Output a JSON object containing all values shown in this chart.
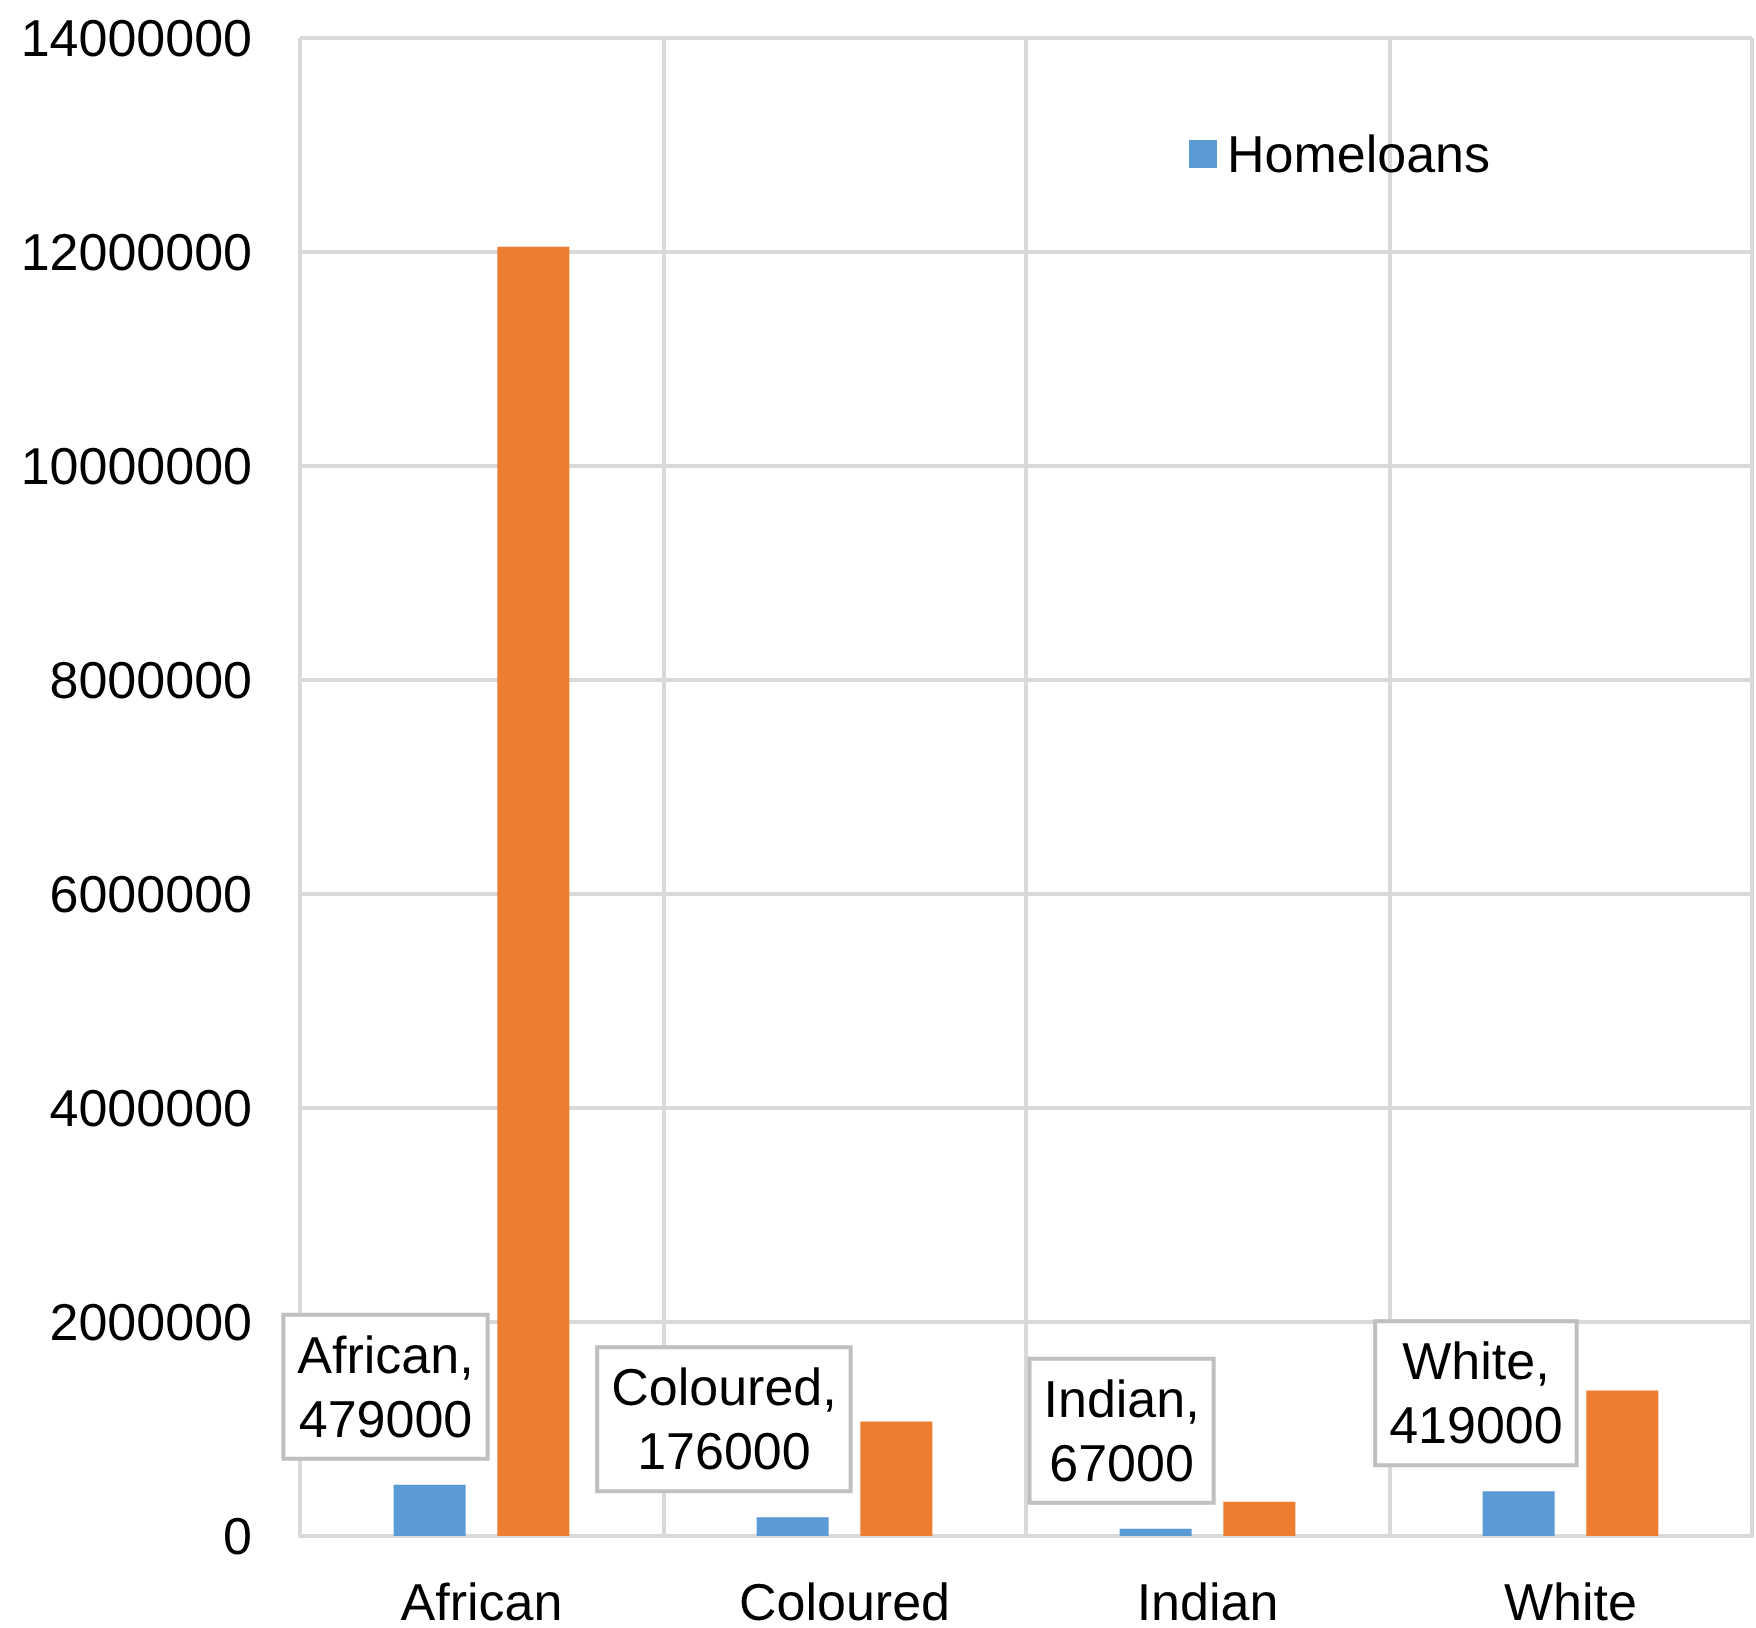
{
  "chart_data": {
    "type": "bar",
    "categories": [
      "African",
      "Coloured",
      "Indian",
      "White"
    ],
    "series": [
      {
        "name": "Homeloans",
        "color": "#5b9bd5",
        "values": [
          479000,
          176000,
          67000,
          419000
        ],
        "value_labels": [
          "African, 479000",
          "Coloured, 176000",
          "Indian, 67000",
          "White, 419000"
        ]
      },
      {
        "color": "#ed7d31",
        "values": [
          12050000,
          1070000,
          320000,
          1360000
        ]
      }
    ],
    "ylim": [
      0,
      14000000
    ],
    "yticks": [
      0,
      2000000,
      4000000,
      6000000,
      8000000,
      10000000,
      12000000,
      14000000
    ],
    "grid": true,
    "legend": "top right"
  }
}
